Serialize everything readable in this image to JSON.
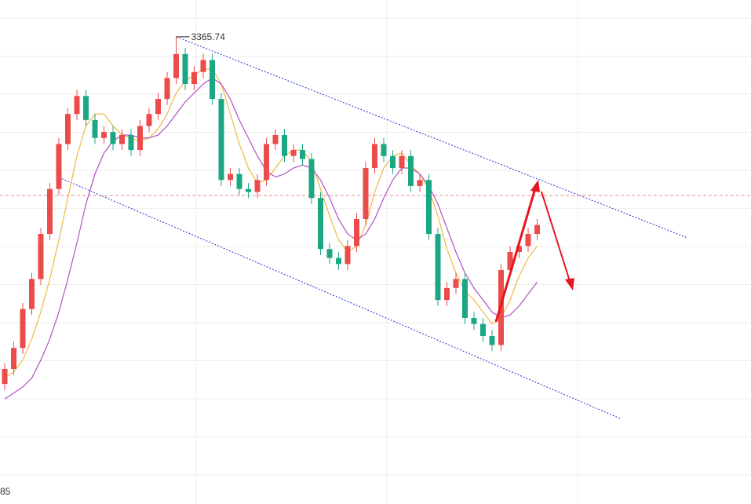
{
  "chart_data": {
    "type": "candlestick",
    "x_axis_labels": [
      "85"
    ],
    "ylim": [
      3210,
      3378
    ],
    "up_color": "#eb4b4b",
    "down_color": "#1ba784",
    "open": [
      3250,
      3255,
      3262,
      3275,
      3285,
      3300,
      3315,
      3330,
      3340,
      3346,
      3338,
      3332,
      3334,
      3330,
      3333,
      3328,
      3336,
      3340,
      3345,
      3352,
      3360,
      3350,
      3354,
      3358,
      3345,
      3318,
      3320,
      3315,
      3314,
      3318,
      3330,
      3333,
      3326,
      3328,
      3325,
      3312,
      3295,
      3292,
      3290,
      3296,
      3305,
      3322,
      3330,
      3326,
      3322,
      3326,
      3316,
      3318,
      3300,
      3278,
      3282,
      3285,
      3272,
      3270,
      3266,
      3263,
      3288,
      3294,
      3296,
      3300
    ],
    "high": [
      3257,
      3264,
      3277,
      3287,
      3302,
      3317,
      3332,
      3342,
      3348,
      3348,
      3340,
      3336,
      3336,
      3335,
      3335,
      3338,
      3342,
      3347,
      3354,
      3365.74,
      3362,
      3356,
      3360,
      3360,
      3347,
      3322,
      3322,
      3317,
      3320,
      3332,
      3335,
      3335,
      3330,
      3330,
      3327,
      3314,
      3297,
      3294,
      3298,
      3307,
      3324,
      3332,
      3332,
      3328,
      3328,
      3328,
      3320,
      3320,
      3302,
      3284,
      3287,
      3287,
      3274,
      3272,
      3268,
      3290,
      3296,
      3298,
      3302,
      3305
    ],
    "low": [
      3248,
      3253,
      3260,
      3273,
      3283,
      3298,
      3313,
      3328,
      3338,
      3336,
      3330,
      3330,
      3328,
      3328,
      3326,
      3326,
      3334,
      3338,
      3343,
      3350,
      3348,
      3348,
      3352,
      3343,
      3316,
      3316,
      3313,
      3312,
      3312,
      3316,
      3328,
      3324,
      3324,
      3323,
      3310,
      3293,
      3290,
      3288,
      3288,
      3294,
      3303,
      3320,
      3324,
      3320,
      3320,
      3314,
      3314,
      3298,
      3276,
      3276,
      3280,
      3270,
      3268,
      3264,
      3261,
      3261,
      3286,
      3292,
      3294,
      3298
    ],
    "close": [
      3255,
      3262,
      3275,
      3285,
      3300,
      3315,
      3330,
      3340,
      3346,
      3338,
      3332,
      3334,
      3330,
      3333,
      3328,
      3336,
      3340,
      3345,
      3352,
      3360,
      3350,
      3354,
      3358,
      3345,
      3318,
      3320,
      3315,
      3314,
      3318,
      3330,
      3333,
      3326,
      3328,
      3325,
      3312,
      3295,
      3292,
      3290,
      3296,
      3305,
      3322,
      3330,
      3326,
      3322,
      3326,
      3316,
      3318,
      3300,
      3278,
      3282,
      3285,
      3272,
      3270,
      3266,
      3263,
      3288,
      3294,
      3296,
      3300,
      3303
    ],
    "series": [
      {
        "color": "#f0b840",
        "values": [
          3252,
          3254,
          3258,
          3265,
          3274,
          3285,
          3298,
          3312,
          3326,
          3336,
          3340,
          3340,
          3336,
          3333,
          3332,
          3331,
          3332,
          3335,
          3340,
          3347,
          3351,
          3353,
          3355,
          3355,
          3350,
          3340,
          3330,
          3322,
          3317,
          3318,
          3322,
          3326,
          3328,
          3328,
          3324,
          3315,
          3306,
          3298,
          3294,
          3296,
          3303,
          3314,
          3322,
          3326,
          3327,
          3323,
          3320,
          3315,
          3306,
          3295,
          3287,
          3281,
          3278,
          3274,
          3270,
          3272,
          3278,
          3286,
          3292,
          3296
        ]
      },
      {
        "color": "#b54fc6",
        "values": [
          3245,
          3247,
          3249,
          3252,
          3258,
          3265,
          3274,
          3285,
          3297,
          3310,
          3320,
          3327,
          3331,
          3333,
          3333,
          3332,
          3332,
          3333,
          3336,
          3340,
          3344,
          3347,
          3350,
          3352,
          3350,
          3345,
          3338,
          3332,
          3326,
          3321,
          3319,
          3320,
          3322,
          3323,
          3322,
          3318,
          3312,
          3305,
          3300,
          3298,
          3300,
          3305,
          3312,
          3318,
          3322,
          3322,
          3320,
          3316,
          3310,
          3302,
          3294,
          3287,
          3282,
          3278,
          3274,
          3272,
          3273,
          3276,
          3280,
          3284
        ]
      }
    ],
    "high_marker_index": 19
  }
}
